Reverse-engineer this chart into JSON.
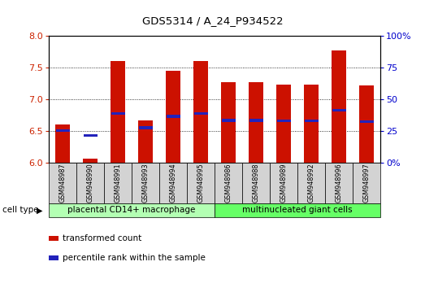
{
  "title": "GDS5314 / A_24_P934522",
  "samples": [
    "GSM948987",
    "GSM948990",
    "GSM948991",
    "GSM948993",
    "GSM948994",
    "GSM948995",
    "GSM948986",
    "GSM948988",
    "GSM948989",
    "GSM948992",
    "GSM948996",
    "GSM948997"
  ],
  "red_values": [
    6.6,
    6.07,
    7.6,
    6.67,
    7.45,
    7.6,
    7.27,
    7.27,
    7.23,
    7.23,
    7.77,
    7.22
  ],
  "blue_values": [
    6.51,
    6.43,
    6.78,
    6.55,
    6.73,
    6.78,
    6.67,
    6.67,
    6.66,
    6.66,
    6.83,
    6.65
  ],
  "ymin": 6.0,
  "ymax": 8.0,
  "yticks": [
    6.0,
    6.5,
    7.0,
    7.5,
    8.0
  ],
  "groups": [
    {
      "label": "placental CD14+ macrophage",
      "start": 0,
      "end": 6,
      "color": "#b3ffb3"
    },
    {
      "label": "multinucleated giant cells",
      "start": 6,
      "end": 12,
      "color": "#66ff66"
    }
  ],
  "cell_type_label": "cell type",
  "legend_red": "transformed count",
  "legend_blue": "percentile rank within the sample",
  "bar_color": "#cc1100",
  "blue_color": "#2222bb",
  "bar_width": 0.55,
  "bg_color": "#ffffff",
  "tick_color_left": "#cc2200",
  "tick_color_right": "#0000cc"
}
